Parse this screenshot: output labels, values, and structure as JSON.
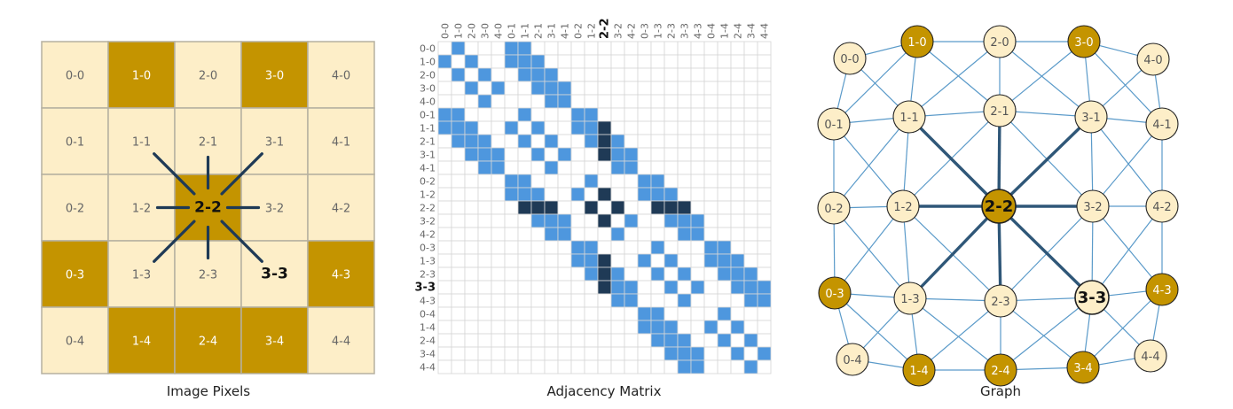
{
  "grid": {
    "cols": 5,
    "rows": 5
  },
  "colors": {
    "light": "#fdeec8",
    "dark": "#c49400",
    "pixel_border": "#b5b0a0",
    "matrix_fill": "#4e97de",
    "matrix_dark": "#1f3a56",
    "matrix_grid": "#d6d6d6",
    "edge": "#5a9ac9",
    "edge_dark": "#2f5778",
    "node_stroke": "#222222"
  },
  "highlight": {
    "center": "2-2",
    "secondary": "3-3"
  },
  "dark_pixels": [
    "1-0",
    "3-0",
    "2-2",
    "0-3",
    "4-3",
    "1-4",
    "2-4",
    "3-4"
  ],
  "panels": {
    "pixels": {
      "caption": "Image Pixels"
    },
    "matrix": {
      "caption": "Adjacency Matrix"
    },
    "graph": {
      "caption": "Graph"
    }
  }
}
